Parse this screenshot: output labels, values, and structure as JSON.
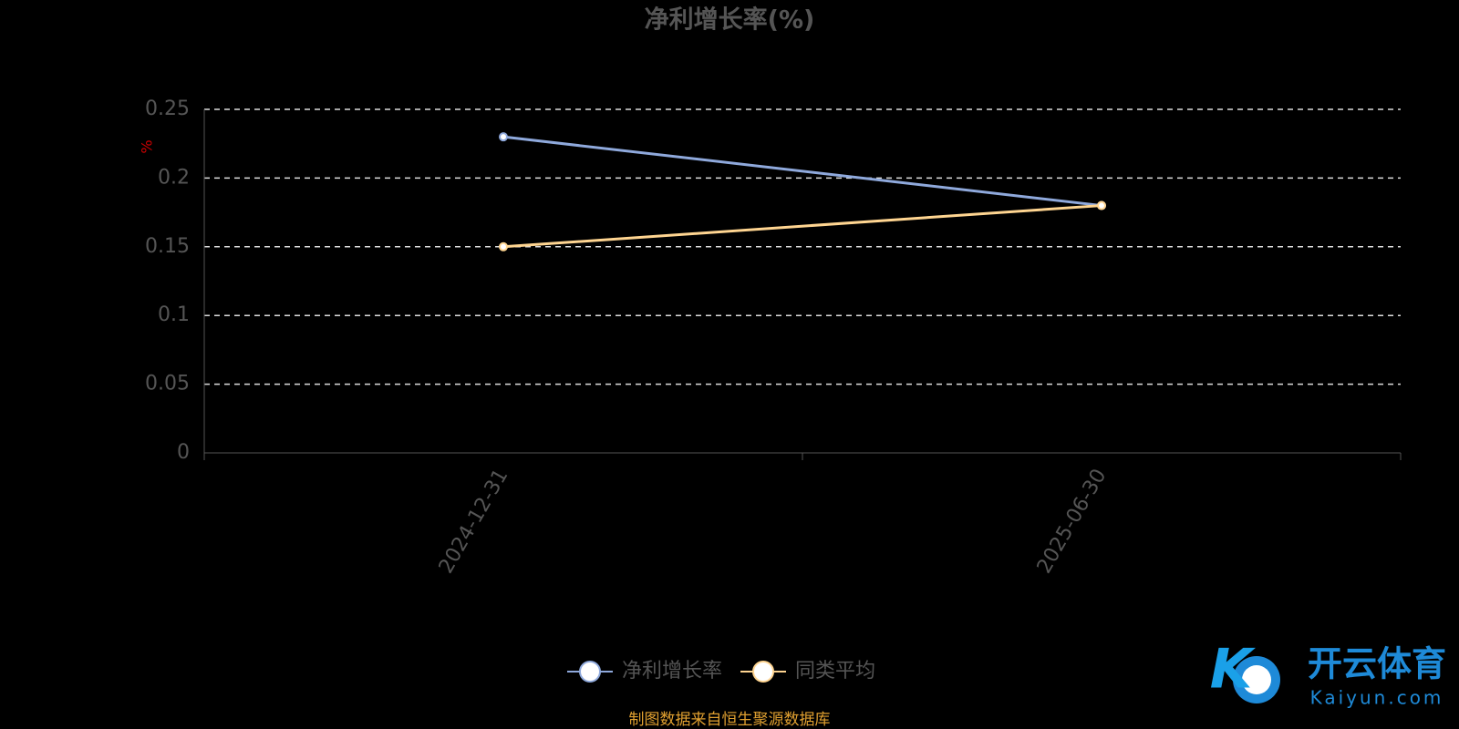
{
  "chart_data": {
    "type": "line",
    "title": "净利增长率(%)",
    "y_label": "%",
    "categories": [
      "2024-12-31",
      "2025-06-30"
    ],
    "series": [
      {
        "name": "净利增长率",
        "color": "#8fa9dc",
        "values": [
          0.23,
          0.18
        ]
      },
      {
        "name": "同类平均",
        "color": "#ffd591",
        "values": [
          0.15,
          0.18
        ]
      }
    ],
    "ylim": [
      0,
      0.25
    ],
    "yticks": [
      0,
      0.05,
      0.1,
      0.15,
      0.2,
      0.25
    ],
    "grid": true,
    "legend": "bottom",
    "source": "制图数据来自恒生聚源数据库"
  },
  "watermark": {
    "title": "开云体育",
    "subtitle": "Kaiyun.com"
  }
}
